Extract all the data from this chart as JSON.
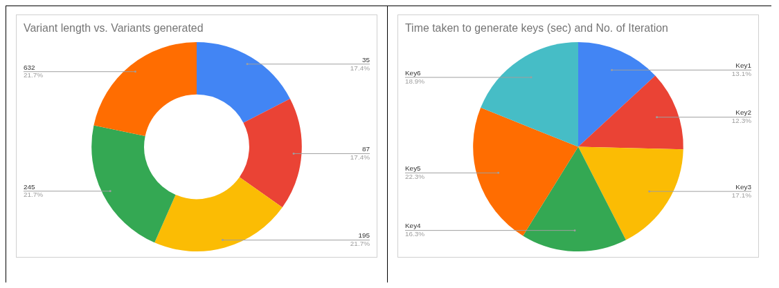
{
  "chart_data": [
    {
      "type": "donut",
      "title": "Variant length vs. Variants generated",
      "categories": [
        "35",
        "87",
        "195",
        "245",
        "632"
      ],
      "values": [
        17.4,
        17.4,
        21.7,
        21.7,
        21.7
      ],
      "value_labels": [
        "17.4%",
        "17.4%",
        "21.7%",
        "21.7%",
        "21.7%"
      ],
      "colors": [
        "#4285f4",
        "#ea4335",
        "#fbbc04",
        "#34a853",
        "#ff6d01"
      ],
      "legend": false
    },
    {
      "type": "pie",
      "title": "Time taken to generate keys (sec) and No. of Iteration",
      "categories": [
        "Key1",
        "Key2",
        "Key3",
        "Key4",
        "Key5",
        "Key6"
      ],
      "values": [
        13.1,
        12.3,
        17.1,
        16.3,
        22.3,
        18.9
      ],
      "value_labels": [
        "13.1%",
        "12.3%",
        "17.1%",
        "16.3%",
        "22.3%",
        "18.9%"
      ],
      "colors": [
        "#4285f4",
        "#ea4335",
        "#fbbc04",
        "#34a853",
        "#ff6d01",
        "#46bdc6"
      ],
      "legend": false
    }
  ]
}
